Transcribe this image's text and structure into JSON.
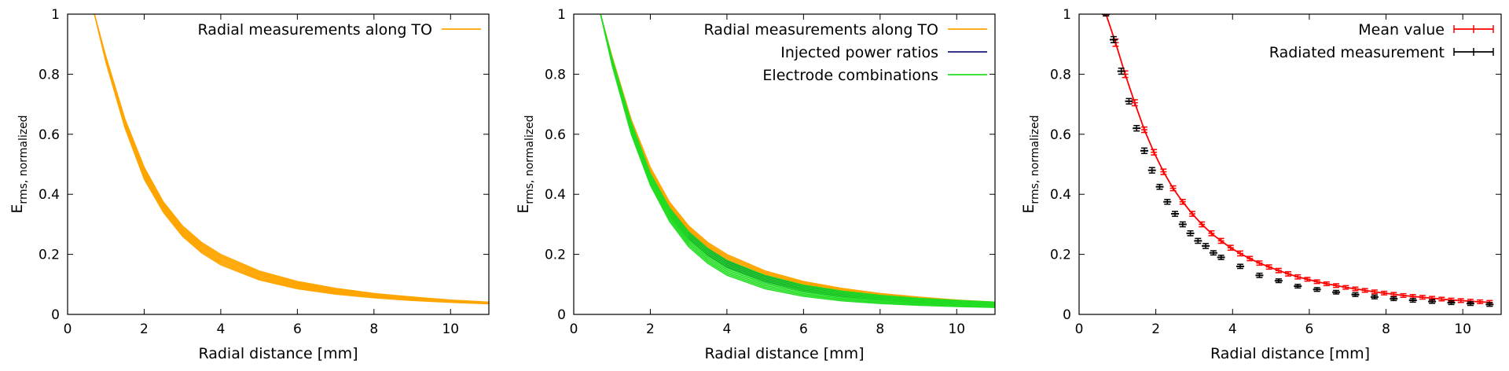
{
  "chart_data": [
    {
      "type": "line",
      "xlabel": "Radial distance [mm]",
      "ylabel": "E",
      "ylabel_sub": "rms, normalized",
      "xlim": [
        0,
        11
      ],
      "ylim": [
        0,
        1
      ],
      "xticks": [
        0,
        2,
        4,
        6,
        8,
        10
      ],
      "yticks": [
        0,
        0.2,
        0.4,
        0.6,
        0.8,
        1
      ],
      "ytick_labels": [
        "0",
        "0.2",
        "0.4",
        "0.6",
        "0.8",
        "1"
      ],
      "legend_position": "top-right",
      "series": [
        {
          "name": "Radial measurements along TO",
          "color": "#FFA500",
          "style": "band",
          "x": [
            0.7,
            1.0,
            1.5,
            2.0,
            2.5,
            3.0,
            3.5,
            4.0,
            5.0,
            6.0,
            7.0,
            8.0,
            9.0,
            10.0,
            11.0
          ],
          "y_lower": [
            1.0,
            0.84,
            0.62,
            0.45,
            0.34,
            0.26,
            0.205,
            0.165,
            0.115,
            0.085,
            0.067,
            0.055,
            0.046,
            0.04,
            0.035
          ],
          "y_upper": [
            1.0,
            0.86,
            0.65,
            0.49,
            0.375,
            0.295,
            0.24,
            0.2,
            0.145,
            0.11,
            0.087,
            0.07,
            0.058,
            0.048,
            0.041
          ]
        }
      ]
    },
    {
      "type": "line",
      "xlabel": "Radial distance [mm]",
      "ylabel": "E",
      "ylabel_sub": "rms, normalized",
      "xlim": [
        0,
        11
      ],
      "ylim": [
        0,
        1
      ],
      "xticks": [
        0,
        2,
        4,
        6,
        8,
        10
      ],
      "yticks": [
        0,
        0.2,
        0.4,
        0.6,
        0.8,
        1
      ],
      "ytick_labels": [
        "0",
        "0.2",
        "0.4",
        "0.6",
        "0.8",
        "1"
      ],
      "legend_position": "top-right",
      "series": [
        {
          "name": "Radial measurements along TO",
          "color": "#FFA500",
          "style": "band",
          "x": [
            0.7,
            1.0,
            1.5,
            2.0,
            2.5,
            3.0,
            3.5,
            4.0,
            5.0,
            6.0,
            7.0,
            8.0,
            9.0,
            10.0,
            11.0
          ],
          "y_lower": [
            1.0,
            0.84,
            0.62,
            0.45,
            0.34,
            0.26,
            0.205,
            0.165,
            0.115,
            0.085,
            0.067,
            0.055,
            0.046,
            0.04,
            0.035
          ],
          "y_upper": [
            1.0,
            0.86,
            0.65,
            0.49,
            0.375,
            0.295,
            0.24,
            0.2,
            0.145,
            0.11,
            0.087,
            0.07,
            0.058,
            0.048,
            0.041
          ]
        },
        {
          "name": "Injected power ratios",
          "color": "#1a1a7a",
          "style": "band",
          "x": [
            0.7,
            1.0,
            1.5,
            2.0,
            2.5,
            3.0,
            3.5,
            4.0,
            5.0,
            6.0,
            7.0,
            8.0,
            9.0,
            10.0,
            11.0
          ],
          "y_lower": [
            1.0,
            0.84,
            0.615,
            0.445,
            0.33,
            0.25,
            0.195,
            0.155,
            0.107,
            0.078,
            0.06,
            0.049,
            0.041,
            0.036,
            0.032
          ],
          "y_upper": [
            1.0,
            0.85,
            0.63,
            0.465,
            0.355,
            0.275,
            0.22,
            0.18,
            0.128,
            0.096,
            0.075,
            0.061,
            0.052,
            0.045,
            0.04
          ]
        },
        {
          "name": "Electrode combinations",
          "color": "#22dd22",
          "style": "band",
          "x": [
            0.7,
            1.0,
            1.5,
            2.0,
            2.5,
            3.0,
            3.5,
            4.0,
            5.0,
            6.0,
            7.0,
            8.0,
            9.0,
            10.0,
            11.0
          ],
          "y_lower": [
            1.0,
            0.83,
            0.6,
            0.43,
            0.31,
            0.225,
            0.17,
            0.13,
            0.085,
            0.06,
            0.045,
            0.036,
            0.03,
            0.026,
            0.023
          ],
          "y_upper": [
            1.0,
            0.855,
            0.64,
            0.47,
            0.355,
            0.275,
            0.22,
            0.18,
            0.13,
            0.098,
            0.078,
            0.064,
            0.054,
            0.047,
            0.041
          ]
        }
      ]
    },
    {
      "type": "line",
      "xlabel": "Radial distance [mm]",
      "ylabel": "E",
      "ylabel_sub": "rms, normalized",
      "xlim": [
        0,
        11
      ],
      "ylim": [
        0,
        1
      ],
      "xticks": [
        0,
        2,
        4,
        6,
        8,
        10
      ],
      "yticks": [
        0,
        0.2,
        0.4,
        0.6,
        0.8,
        1
      ],
      "ytick_labels": [
        "0",
        "0.2",
        "0.4",
        "0.6",
        "0.8",
        "1"
      ],
      "legend_position": "top-right",
      "series": [
        {
          "name": "Mean value",
          "color": "#ff0000",
          "style": "line-errorbars",
          "x": [
            0.7,
            0.95,
            1.2,
            1.45,
            1.7,
            1.95,
            2.2,
            2.45,
            2.7,
            2.95,
            3.2,
            3.45,
            3.7,
            3.95,
            4.2,
            4.45,
            4.7,
            4.95,
            5.2,
            5.45,
            5.7,
            5.95,
            6.2,
            6.45,
            6.7,
            6.95,
            7.2,
            7.45,
            7.7,
            7.95,
            8.2,
            8.45,
            8.7,
            8.95,
            9.2,
            9.45,
            9.7,
            9.95,
            10.2,
            10.45,
            10.7
          ],
          "y": [
            1.0,
            0.905,
            0.8,
            0.705,
            0.615,
            0.54,
            0.475,
            0.42,
            0.375,
            0.335,
            0.3,
            0.27,
            0.245,
            0.222,
            0.203,
            0.186,
            0.171,
            0.158,
            0.146,
            0.135,
            0.125,
            0.117,
            0.109,
            0.102,
            0.096,
            0.09,
            0.085,
            0.08,
            0.075,
            0.071,
            0.067,
            0.063,
            0.06,
            0.057,
            0.054,
            0.051,
            0.048,
            0.046,
            0.044,
            0.042,
            0.04
          ],
          "err": [
            0.005,
            0.012,
            0.011,
            0.01,
            0.009,
            0.009,
            0.009,
            0.008,
            0.008,
            0.008,
            0.008,
            0.008,
            0.008,
            0.008,
            0.008,
            0.007,
            0.007,
            0.007,
            0.007,
            0.007,
            0.007,
            0.006,
            0.006,
            0.006,
            0.006,
            0.006,
            0.006,
            0.006,
            0.006,
            0.006,
            0.006,
            0.006,
            0.006,
            0.006,
            0.006,
            0.006,
            0.006,
            0.006,
            0.006,
            0.006,
            0.006
          ]
        },
        {
          "name": "Radiated measurement",
          "color": "#000000",
          "style": "points-errorbars",
          "x": [
            0.7,
            0.9,
            1.1,
            1.3,
            1.5,
            1.7,
            1.9,
            2.1,
            2.3,
            2.5,
            2.7,
            2.9,
            3.1,
            3.3,
            3.5,
            3.7,
            4.2,
            4.7,
            5.2,
            5.7,
            6.2,
            6.7,
            7.2,
            7.7,
            8.2,
            8.7,
            9.2,
            9.7,
            10.2,
            10.7
          ],
          "y": [
            1.0,
            0.915,
            0.81,
            0.71,
            0.62,
            0.545,
            0.48,
            0.425,
            0.375,
            0.335,
            0.3,
            0.27,
            0.245,
            0.228,
            0.205,
            0.19,
            0.16,
            0.13,
            0.112,
            0.094,
            0.083,
            0.074,
            0.066,
            0.058,
            0.052,
            0.047,
            0.043,
            0.039,
            0.036,
            0.033
          ],
          "err": [
            0.006,
            0.01,
            0.01,
            0.009,
            0.009,
            0.009,
            0.009,
            0.008,
            0.008,
            0.008,
            0.008,
            0.008,
            0.008,
            0.008,
            0.007,
            0.007,
            0.007,
            0.007,
            0.006,
            0.006,
            0.006,
            0.006,
            0.006,
            0.006,
            0.006,
            0.006,
            0.006,
            0.006,
            0.006,
            0.006
          ]
        }
      ]
    }
  ]
}
